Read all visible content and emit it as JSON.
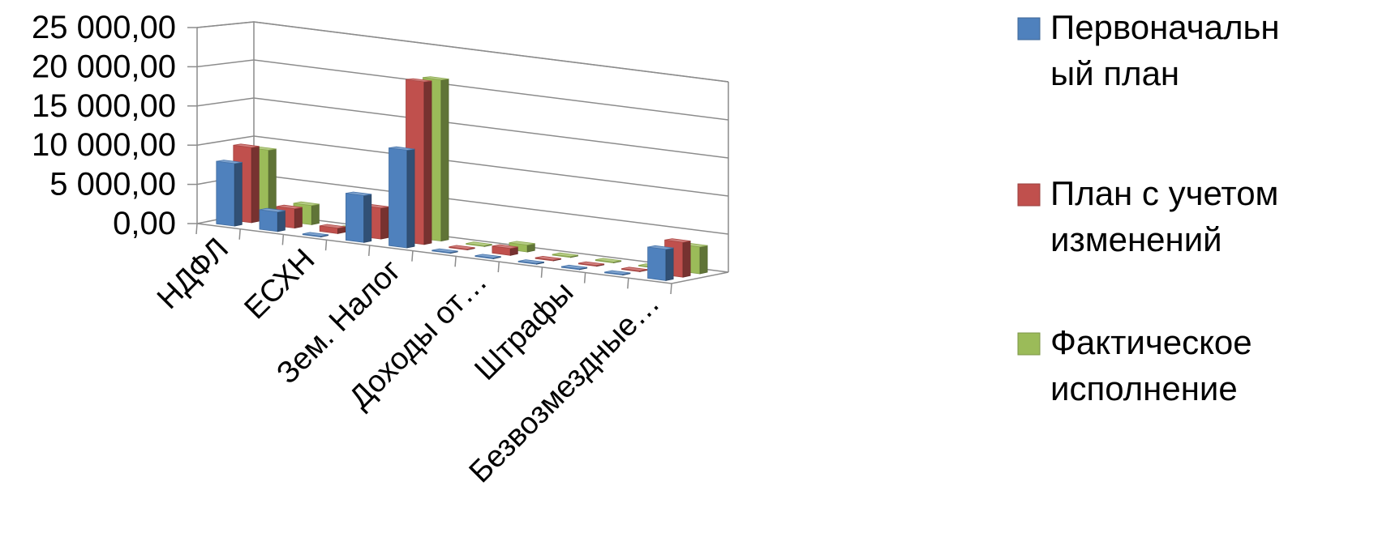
{
  "chart_data": {
    "type": "bar",
    "subtype": "3d-clustered-column",
    "categories": [
      "НДФЛ",
      "",
      "ЕСХН",
      "",
      "Зем. Налог",
      "",
      "Доходы от…",
      "",
      "Штрафы",
      "",
      "Безвозмездные…"
    ],
    "series": [
      {
        "name": "Первоначальн ый план",
        "name_lines": [
          "Первоначальн",
          "ый план"
        ],
        "color": "#4F81BD",
        "values": [
          8000,
          2500,
          0,
          6000,
          12500,
          0,
          0,
          0,
          0,
          0,
          4000
        ]
      },
      {
        "name": "План с учетом изменений",
        "name_lines": [
          "План с учетом",
          "изменений"
        ],
        "color": "#C0504D",
        "values": [
          9700,
          2500,
          700,
          4000,
          21000,
          0,
          900,
          0,
          0,
          0,
          4500
        ]
      },
      {
        "name": "Фактическое исполнение",
        "name_lines": [
          "Фактическое",
          "исполнение"
        ],
        "color": "#9BBB59",
        "values": [
          9000,
          2500,
          0,
          1500,
          21000,
          0,
          900,
          0,
          0,
          0,
          3500
        ]
      }
    ],
    "y_ticks": [
      "0,00",
      "5 000,00",
      "10 000,00",
      "15 000,00",
      "20 000,00",
      "25 000,00"
    ],
    "ylim": [
      0,
      25000
    ],
    "grid": true,
    "legend": "right"
  }
}
